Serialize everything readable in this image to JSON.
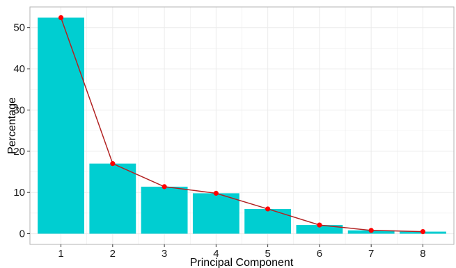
{
  "chart_data": {
    "type": "bar",
    "categories": [
      "1",
      "2",
      "3",
      "4",
      "5",
      "6",
      "7",
      "8"
    ],
    "values": [
      52.4,
      17.0,
      11.4,
      9.8,
      6.0,
      2.1,
      0.8,
      0.5
    ],
    "xlabel": "Principal Component",
    "ylabel": "Percentage",
    "ylim": [
      -2.6,
      55
    ],
    "yticks": [
      0,
      10,
      20,
      30,
      40,
      50
    ],
    "grid": true,
    "overlay": "line with markers through bar tops",
    "colors": {
      "bar": "#00CED1",
      "line": "#B22222",
      "marker": "#FF0000",
      "grid": "#EBEBEB",
      "panel_border": "#B3B3B3"
    }
  }
}
